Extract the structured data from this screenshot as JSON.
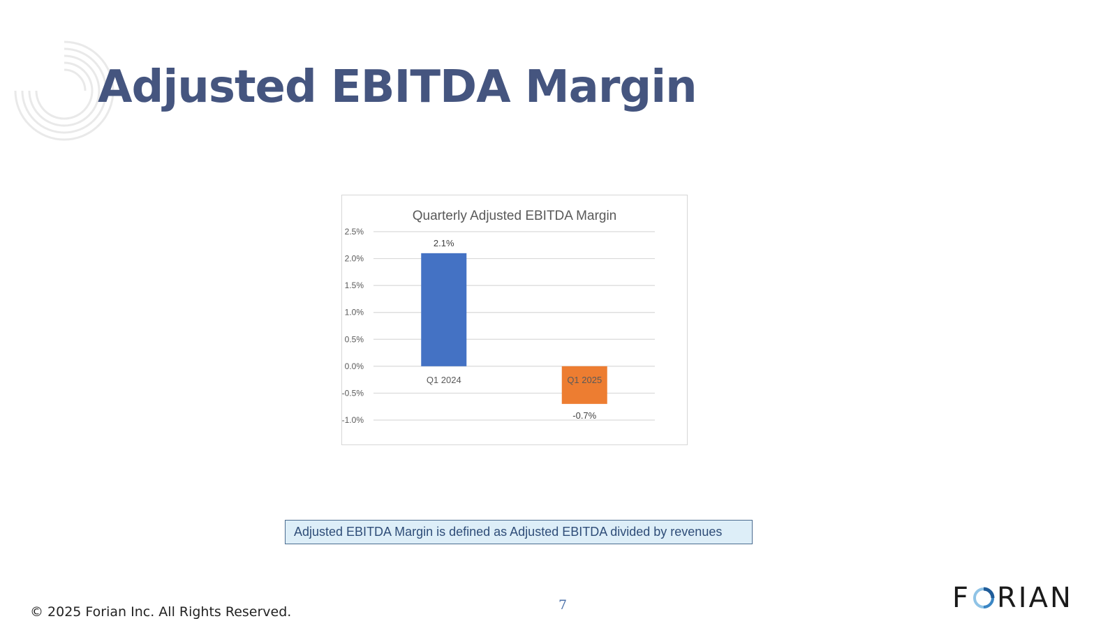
{
  "slide": {
    "title": "Adjusted EBITDA Margin",
    "note": "Adjusted EBITDA Margin is defined as Adjusted EBITDA divided by revenues",
    "copyright": "© 2025 Forian Inc.  All Rights Reserved.",
    "page_number": "7",
    "logo_text": "FORIAN"
  },
  "chart_data": {
    "type": "bar",
    "title": "Quarterly Adjusted  EBITDA Margin",
    "categories": [
      "Q1 2024",
      "Q1 2025"
    ],
    "values": [
      2.1,
      -0.7
    ],
    "data_labels": [
      "2.1%",
      "-0.7%"
    ],
    "colors": [
      "#4472c4",
      "#ed7d31"
    ],
    "ylim": [
      -1.0,
      2.5
    ],
    "yticks": [
      2.5,
      2.0,
      1.5,
      1.0,
      0.5,
      0.0,
      -0.5,
      -1.0
    ],
    "ytick_labels": [
      "2.5%",
      "2.0%",
      "1.5%",
      "1.0%",
      "0.5%",
      "0.0%",
      "-0.5%",
      "-1.0%"
    ],
    "grid": true,
    "legend": "none",
    "xlabel": "",
    "ylabel": ""
  },
  "colors": {
    "title": "#45557f",
    "note_bg": "#ddeef8",
    "note_border": "#4a6b8f",
    "page_number": "#4a6fa8"
  }
}
